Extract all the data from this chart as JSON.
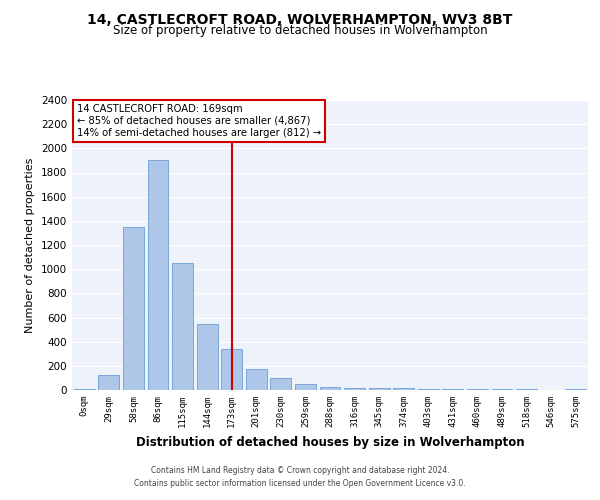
{
  "title1": "14, CASTLECROFT ROAD, WOLVERHAMPTON, WV3 8BT",
  "title2": "Size of property relative to detached houses in Wolverhampton",
  "xlabel": "Distribution of detached houses by size in Wolverhampton",
  "ylabel": "Number of detached properties",
  "categories": [
    "0sqm",
    "29sqm",
    "58sqm",
    "86sqm",
    "115sqm",
    "144sqm",
    "173sqm",
    "201sqm",
    "230sqm",
    "259sqm",
    "288sqm",
    "316sqm",
    "345sqm",
    "374sqm",
    "403sqm",
    "431sqm",
    "460sqm",
    "489sqm",
    "518sqm",
    "546sqm",
    "575sqm"
  ],
  "values": [
    5,
    125,
    1350,
    1900,
    1050,
    550,
    340,
    175,
    100,
    50,
    27,
    20,
    15,
    15,
    10,
    5,
    10,
    5,
    5,
    2,
    5
  ],
  "bar_color": "#aec6e8",
  "bar_edge_color": "#6a9fd8",
  "vline_x": 6,
  "vline_color": "#cc0000",
  "annotation_text": "14 CASTLECROFT ROAD: 169sqm\n← 85% of detached houses are smaller (4,867)\n14% of semi-detached houses are larger (812) →",
  "annotation_box_color": "#ffffff",
  "annotation_box_edge": "#cc0000",
  "ylim": [
    0,
    2400
  ],
  "yticks": [
    0,
    200,
    400,
    600,
    800,
    1000,
    1200,
    1400,
    1600,
    1800,
    2000,
    2200,
    2400
  ],
  "background_color": "#eef2fa",
  "footer1": "Contains HM Land Registry data © Crown copyright and database right 2024.",
  "footer2": "Contains public sector information licensed under the Open Government Licence v3.0."
}
